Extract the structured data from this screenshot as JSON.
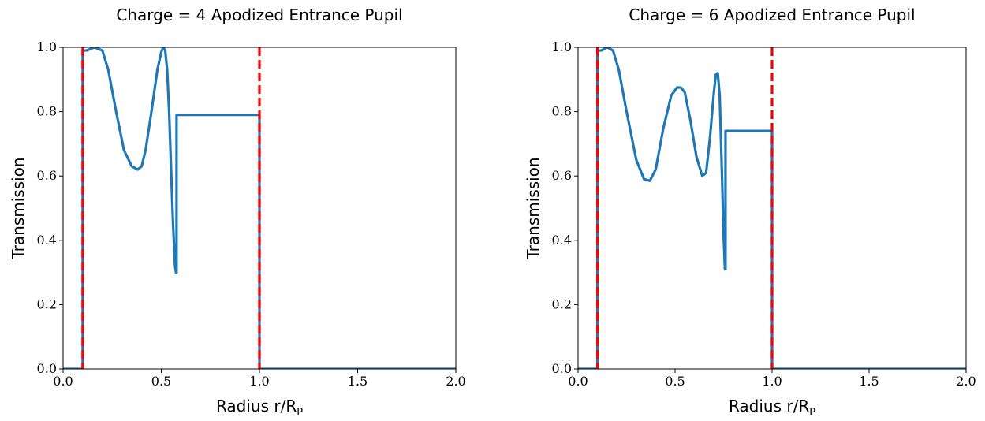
{
  "chart_data": [
    {
      "type": "line",
      "title": "Charge = 4 Apodized Entrance Pupil",
      "xlabel": "Radius r/R",
      "xlabel_sub": "P",
      "ylabel": "Transmission",
      "xlim": [
        0.0,
        2.0
      ],
      "ylim": [
        0.0,
        1.0
      ],
      "xticks": [
        0.0,
        0.5,
        1.0,
        1.5,
        2.0
      ],
      "xtick_labels": [
        "0.0",
        "0.5",
        "1.0",
        "1.5",
        "2.0"
      ],
      "yticks": [
        0.0,
        0.2,
        0.4,
        0.6,
        0.8,
        1.0
      ],
      "ytick_labels": [
        "0.0",
        "0.2",
        "0.4",
        "0.6",
        "0.8",
        "1.0"
      ],
      "series": [
        {
          "color": "#1f77b4",
          "x": [
            0.0,
            0.1,
            0.1,
            0.12,
            0.16,
            0.2,
            0.23,
            0.27,
            0.31,
            0.35,
            0.38,
            0.4,
            0.42,
            0.45,
            0.48,
            0.5,
            0.51,
            0.52,
            0.53,
            0.54,
            0.55,
            0.56,
            0.57,
            0.575,
            0.578,
            0.578,
            0.6,
            1.0,
            1.0,
            2.0
          ],
          "y": [
            0.0,
            0.0,
            0.99,
            0.99,
            1.0,
            0.99,
            0.93,
            0.8,
            0.68,
            0.63,
            0.62,
            0.63,
            0.68,
            0.8,
            0.93,
            0.985,
            1.0,
            0.99,
            0.93,
            0.8,
            0.62,
            0.45,
            0.32,
            0.3,
            0.3,
            0.79,
            0.79,
            0.79,
            0.0,
            0.0
          ]
        }
      ],
      "vlines": [
        {
          "x": 0.1,
          "color": "#ff0000",
          "style": "dashed"
        },
        {
          "x": 1.0,
          "color": "#ff0000",
          "style": "dashed"
        }
      ]
    },
    {
      "type": "line",
      "title": "Charge = 6 Apodized Entrance Pupil",
      "xlabel": "Radius r/R",
      "xlabel_sub": "P",
      "ylabel": "Transmission",
      "xlim": [
        0.0,
        2.0
      ],
      "ylim": [
        0.0,
        1.0
      ],
      "xticks": [
        0.0,
        0.5,
        1.0,
        1.5,
        2.0
      ],
      "xtick_labels": [
        "0.0",
        "0.5",
        "1.0",
        "1.5",
        "2.0"
      ],
      "yticks": [
        0.0,
        0.2,
        0.4,
        0.6,
        0.8,
        1.0
      ],
      "ytick_labels": [
        "0.0",
        "0.2",
        "0.4",
        "0.6",
        "0.8",
        "1.0"
      ],
      "series": [
        {
          "color": "#1f77b4",
          "x": [
            0.0,
            0.1,
            0.1,
            0.12,
            0.15,
            0.18,
            0.21,
            0.25,
            0.3,
            0.34,
            0.37,
            0.4,
            0.44,
            0.48,
            0.51,
            0.53,
            0.55,
            0.58,
            0.61,
            0.64,
            0.66,
            0.68,
            0.7,
            0.71,
            0.72,
            0.73,
            0.74,
            0.75,
            0.757,
            0.76,
            0.76,
            0.78,
            1.0,
            1.0,
            2.0
          ],
          "y": [
            0.0,
            0.0,
            0.99,
            0.99,
            1.0,
            0.99,
            0.93,
            0.8,
            0.65,
            0.59,
            0.585,
            0.62,
            0.75,
            0.85,
            0.875,
            0.875,
            0.86,
            0.77,
            0.66,
            0.6,
            0.61,
            0.72,
            0.86,
            0.915,
            0.92,
            0.85,
            0.64,
            0.42,
            0.31,
            0.31,
            0.74,
            0.74,
            0.74,
            0.0,
            0.0
          ]
        }
      ],
      "vlines": [
        {
          "x": 0.1,
          "color": "#ff0000",
          "style": "dashed"
        },
        {
          "x": 1.0,
          "color": "#ff0000",
          "style": "dashed"
        }
      ]
    }
  ]
}
